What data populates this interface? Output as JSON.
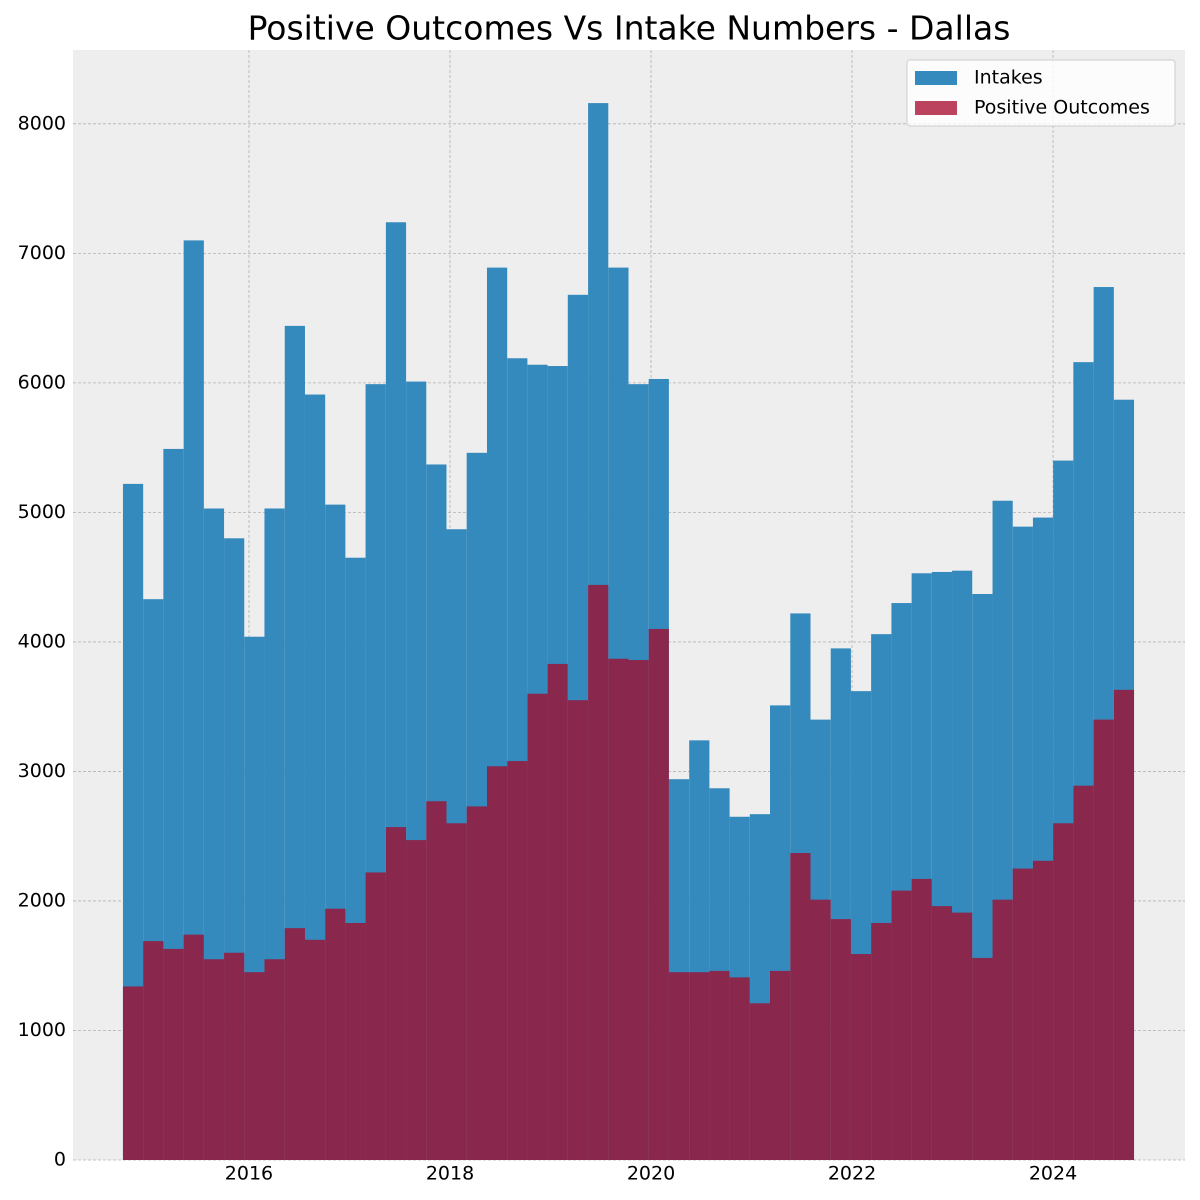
{
  "chart_data": {
    "type": "histogram",
    "title": "Positive Outcomes Vs Intake Numbers - Dallas",
    "bins": [
      2014.746,
      2014.947,
      2015.148,
      2015.35,
      2015.551,
      2015.752,
      2015.953,
      2016.154,
      2016.356,
      2016.557,
      2016.758,
      2016.959,
      2017.16,
      2017.362,
      2017.563,
      2017.764,
      2017.965,
      2018.166,
      2018.368,
      2018.569,
      2018.77,
      2018.971,
      2019.172,
      2019.374,
      2019.575,
      2019.776,
      2019.977,
      2020.178,
      2020.38,
      2020.581,
      2020.782,
      2020.983,
      2021.184,
      2021.386,
      2021.587,
      2021.788,
      2021.989,
      2022.19,
      2022.392,
      2022.593,
      2022.794,
      2022.995,
      2023.196,
      2023.398,
      2023.599,
      2023.8,
      2024.001,
      2024.202,
      2024.404,
      2024.605,
      2024.806
    ],
    "series": [
      {
        "name": "Intakes",
        "color": "#348abd",
        "values": [
          5220,
          4330,
          5490,
          7100,
          5030,
          4800,
          4040,
          5030,
          6440,
          5910,
          5060,
          4650,
          5990,
          7240,
          6010,
          5370,
          4870,
          5460,
          6890,
          6190,
          6140,
          6130,
          6680,
          8160,
          6890,
          5990,
          6030,
          2940,
          3240,
          2870,
          2650,
          2670,
          3510,
          4220,
          3400,
          3950,
          3620,
          4060,
          4300,
          4530,
          4540,
          4550,
          4370,
          5090,
          4890,
          4960,
          5400,
          6160,
          6740,
          5870
        ]
      },
      {
        "name": "Positive Outcomes",
        "color": "#a60628",
        "values": [
          1340,
          1690,
          1630,
          1740,
          1550,
          1600,
          1450,
          1550,
          1790,
          1700,
          1940,
          1830,
          2220,
          2570,
          2470,
          2770,
          2600,
          2730,
          3040,
          3080,
          3600,
          3830,
          3550,
          4440,
          3870,
          3860,
          4100,
          1450,
          1450,
          1460,
          1410,
          1210,
          1460,
          2370,
          2010,
          1860,
          1590,
          1830,
          2080,
          2170,
          1960,
          1910,
          1560,
          2010,
          2250,
          2310,
          2600,
          2890,
          3400,
          3630
        ]
      }
    ],
    "xlim": [
      2014.249,
      2025.313
    ],
    "xticks": [
      2016,
      2018,
      2020,
      2022,
      2024
    ],
    "ylim": [
      0,
      8570
    ],
    "yticks": [
      0,
      1000,
      2000,
      3000,
      4000,
      5000,
      6000,
      7000,
      8000
    ],
    "grid": true,
    "legend": "upper right"
  }
}
